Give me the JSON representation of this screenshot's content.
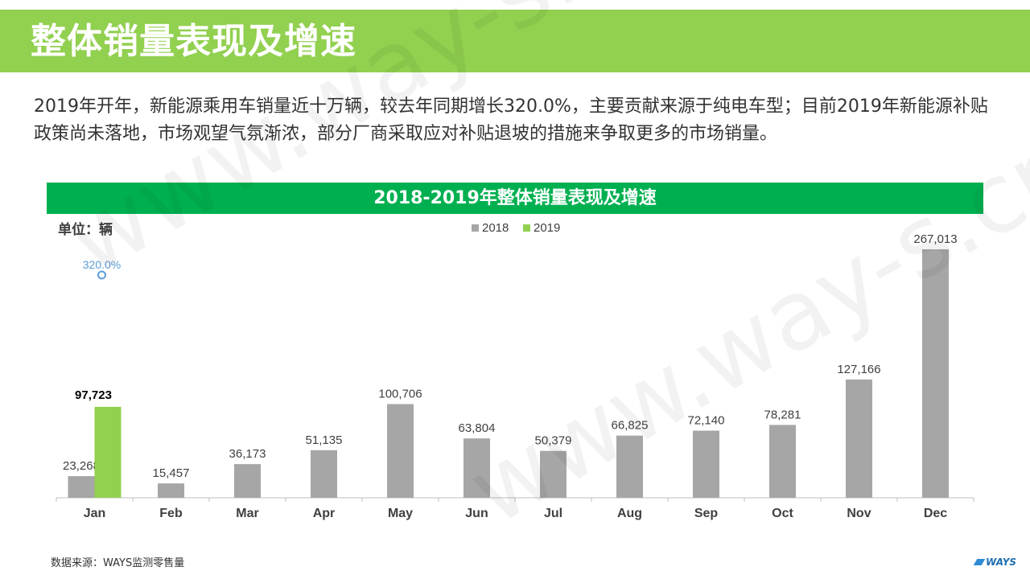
{
  "header": {
    "title": "整体销量表现及增速"
  },
  "intro_text": "2019年开年，新能源乘用车销量近十万辆，较去年同期增长320.0%，主要贡献来源于纯电车型；目前2019年新能源补贴政策尚未落地，市场观望气氛渐浓，部分厂商采取应对补贴退坡的措施来争取更多的市场销量。",
  "chart_data": {
    "type": "bar",
    "title": "2018-2019年整体销量表现及增速",
    "unit": "单位：辆",
    "categories": [
      "Jan",
      "Feb",
      "Mar",
      "Apr",
      "May",
      "Jun",
      "Jul",
      "Aug",
      "Sep",
      "Oct",
      "Nov",
      "Dec"
    ],
    "series": [
      {
        "name": "2018",
        "color": "#a6a6a6",
        "values": [
          23268,
          15457,
          36173,
          51135,
          100706,
          63804,
          50379,
          66825,
          72140,
          78281,
          127166,
          267013
        ],
        "labels": [
          "23,268",
          "15,457",
          "36,173",
          "51,135",
          "100,706",
          "63,804",
          "50,379",
          "66,825",
          "72,140",
          "78,281",
          "127,166",
          "267,013"
        ]
      },
      {
        "name": "2019",
        "color": "#92d050",
        "values": [
          97723,
          null,
          null,
          null,
          null,
          null,
          null,
          null,
          null,
          null,
          null,
          null
        ],
        "labels": [
          "97,723",
          "",
          "",
          "",
          "",
          "",
          "",
          "",
          "",
          "",
          "",
          ""
        ]
      }
    ],
    "growth": {
      "category": "Jan",
      "value": 320.0,
      "label": "320.0%",
      "color": "#5b9bd5"
    },
    "ylim": [
      0,
      280000
    ],
    "grid": false,
    "legend": "top-center"
  },
  "footer": {
    "source": "数据来源：WAYS监测零售量",
    "logo": "WAYS"
  },
  "watermark": "www.way-s.cn",
  "colors": {
    "header": "#92d050",
    "chart_band": "#00b050"
  }
}
